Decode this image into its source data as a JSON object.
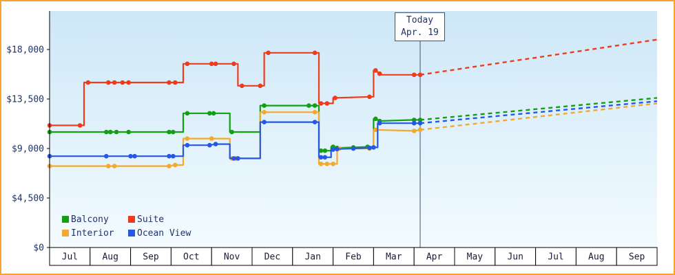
{
  "window": {
    "frame_border_color": "#f6a42c",
    "background_color": "#ffffff"
  },
  "chart_data": {
    "type": "line",
    "title": "",
    "grid": false,
    "legend_position": "bottom-left-inside",
    "y_axis": {
      "ylim": [
        0,
        21500
      ],
      "ticks": [
        {
          "value": 0,
          "label": "$0"
        },
        {
          "value": 4500,
          "label": "$4,500"
        },
        {
          "value": 9000,
          "label": "$9,000"
        },
        {
          "value": 13500,
          "label": "$13,500"
        },
        {
          "value": 18000,
          "label": "$18,000"
        }
      ]
    },
    "x_axis": {
      "months": [
        "Jul",
        "Aug",
        "Sep",
        "Oct",
        "Nov",
        "Dec",
        "Jan",
        "Feb",
        "Mar",
        "Apr",
        "May",
        "Jun",
        "Jul",
        "Aug",
        "Sep"
      ]
    },
    "today": {
      "line1": "Today",
      "line2": "Apr. 19",
      "month_position": 9.15
    },
    "colors": {
      "plot_top": "#cde7f7",
      "plot_bottom": "#f3fbff",
      "axis": "#000000",
      "tick_text": "#223366",
      "month_text": "#1a1a33",
      "today_line": "#44506a",
      "month_cell_fill": "#ffffff"
    },
    "legend": {
      "rows": [
        [
          "Balcony",
          "Suite"
        ],
        [
          "Interior",
          "Ocean View"
        ]
      ]
    },
    "series": [
      {
        "name": "Balcony",
        "color": "#12a012",
        "points": [
          [
            0,
            10500,
            1
          ],
          [
            1.4,
            10500,
            1
          ],
          [
            1.5,
            10500,
            1
          ],
          [
            1.65,
            10500,
            1
          ],
          [
            1.95,
            10500,
            1
          ],
          [
            2.95,
            10500,
            1
          ],
          [
            3.05,
            10500,
            1
          ],
          [
            3.3,
            10500,
            0
          ],
          [
            3.3,
            12200,
            0
          ],
          [
            3.4,
            12200,
            1
          ],
          [
            3.95,
            12200,
            1
          ],
          [
            4.05,
            12200,
            1
          ],
          [
            4.45,
            12200,
            0
          ],
          [
            4.45,
            10500,
            0
          ],
          [
            4.5,
            10500,
            1
          ],
          [
            5.2,
            10500,
            0
          ],
          [
            5.2,
            12900,
            0
          ],
          [
            5.3,
            12900,
            1
          ],
          [
            6.4,
            12900,
            1
          ],
          [
            6.55,
            12900,
            1
          ],
          [
            6.65,
            12900,
            0
          ],
          [
            6.65,
            8800,
            0
          ],
          [
            6.7,
            8800,
            1
          ],
          [
            6.8,
            8800,
            1
          ],
          [
            6.95,
            8800,
            0
          ],
          [
            6.95,
            9150,
            0
          ],
          [
            7.0,
            9150,
            1
          ],
          [
            7.1,
            9050,
            1
          ],
          [
            7.5,
            9100,
            1
          ],
          [
            7.85,
            9150,
            1
          ],
          [
            8.0,
            9150,
            0
          ],
          [
            8.0,
            11700,
            0
          ],
          [
            8.05,
            11700,
            1
          ],
          [
            8.15,
            11500,
            1
          ],
          [
            9.0,
            11600,
            1
          ],
          [
            9.15,
            11600,
            1
          ]
        ],
        "forecast": [
          [
            9.15,
            11600
          ],
          [
            15,
            13600
          ]
        ]
      },
      {
        "name": "Suite",
        "color": "#ee3b1c",
        "points": [
          [
            0,
            11100,
            1
          ],
          [
            0.75,
            11100,
            1
          ],
          [
            0.85,
            11100,
            0
          ],
          [
            0.85,
            15000,
            0
          ],
          [
            0.95,
            15000,
            1
          ],
          [
            1.45,
            15000,
            1
          ],
          [
            1.6,
            15000,
            1
          ],
          [
            1.8,
            15000,
            1
          ],
          [
            1.95,
            15000,
            1
          ],
          [
            2.95,
            15000,
            1
          ],
          [
            3.1,
            15000,
            1
          ],
          [
            3.3,
            15000,
            0
          ],
          [
            3.3,
            16700,
            0
          ],
          [
            3.4,
            16700,
            1
          ],
          [
            4.0,
            16700,
            1
          ],
          [
            4.1,
            16700,
            1
          ],
          [
            4.55,
            16700,
            1
          ],
          [
            4.65,
            16700,
            0
          ],
          [
            4.65,
            14700,
            0
          ],
          [
            4.75,
            14700,
            1
          ],
          [
            5.2,
            14700,
            1
          ],
          [
            5.3,
            14700,
            0
          ],
          [
            5.3,
            17700,
            0
          ],
          [
            5.4,
            17700,
            1
          ],
          [
            6.55,
            17700,
            1
          ],
          [
            6.65,
            17700,
            0
          ],
          [
            6.65,
            13100,
            0
          ],
          [
            6.7,
            13100,
            1
          ],
          [
            6.85,
            13100,
            1
          ],
          [
            7.0,
            13100,
            0
          ],
          [
            7.0,
            13600,
            0
          ],
          [
            7.05,
            13600,
            1
          ],
          [
            7.9,
            13700,
            1
          ],
          [
            8.0,
            13700,
            0
          ],
          [
            8.0,
            16100,
            0
          ],
          [
            8.05,
            16100,
            1
          ],
          [
            8.15,
            15800,
            1
          ],
          [
            8.2,
            15700,
            0
          ],
          [
            9.0,
            15700,
            1
          ],
          [
            9.15,
            15700,
            1
          ]
        ],
        "forecast": [
          [
            9.15,
            15700
          ],
          [
            15,
            18900
          ]
        ]
      },
      {
        "name": "Interior",
        "color": "#f2a92e",
        "points": [
          [
            0,
            7400,
            1
          ],
          [
            1.45,
            7400,
            1
          ],
          [
            1.6,
            7400,
            1
          ],
          [
            2.95,
            7400,
            1
          ],
          [
            3.1,
            7500,
            1
          ],
          [
            3.3,
            7500,
            0
          ],
          [
            3.3,
            9900,
            0
          ],
          [
            3.4,
            9900,
            1
          ],
          [
            4.0,
            9900,
            1
          ],
          [
            4.45,
            9900,
            0
          ],
          [
            4.45,
            8100,
            0
          ],
          [
            4.5,
            8100,
            1
          ],
          [
            4.6,
            8100,
            1
          ],
          [
            5.2,
            8100,
            0
          ],
          [
            5.2,
            12300,
            0
          ],
          [
            5.3,
            12300,
            1
          ],
          [
            6.55,
            12300,
            1
          ],
          [
            6.65,
            12300,
            0
          ],
          [
            6.65,
            7600,
            0
          ],
          [
            6.7,
            7600,
            1
          ],
          [
            6.85,
            7600,
            1
          ],
          [
            7.0,
            7600,
            1
          ],
          [
            7.1,
            7600,
            0
          ],
          [
            7.1,
            9000,
            0
          ],
          [
            7.15,
            9000,
            1
          ],
          [
            7.5,
            9000,
            1
          ],
          [
            7.9,
            9000,
            1
          ],
          [
            8.0,
            9000,
            0
          ],
          [
            8.0,
            10700,
            0
          ],
          [
            8.05,
            10700,
            1
          ],
          [
            9.0,
            10600,
            1
          ],
          [
            9.15,
            10700,
            1
          ]
        ],
        "forecast": [
          [
            9.15,
            10700
          ],
          [
            15,
            13100
          ]
        ]
      },
      {
        "name": "Ocean View",
        "color": "#2457e6",
        "points": [
          [
            0,
            8300,
            1
          ],
          [
            1.4,
            8300,
            1
          ],
          [
            2.0,
            8300,
            1
          ],
          [
            2.1,
            8300,
            1
          ],
          [
            2.95,
            8300,
            1
          ],
          [
            3.05,
            8300,
            1
          ],
          [
            3.3,
            8300,
            0
          ],
          [
            3.3,
            9300,
            0
          ],
          [
            3.4,
            9300,
            1
          ],
          [
            3.95,
            9300,
            1
          ],
          [
            4.1,
            9400,
            1
          ],
          [
            4.45,
            9400,
            0
          ],
          [
            4.45,
            8100,
            0
          ],
          [
            4.55,
            8100,
            1
          ],
          [
            4.65,
            8100,
            1
          ],
          [
            5.2,
            8100,
            0
          ],
          [
            5.2,
            11400,
            0
          ],
          [
            5.3,
            11400,
            1
          ],
          [
            6.55,
            11400,
            1
          ],
          [
            6.65,
            11400,
            0
          ],
          [
            6.65,
            8200,
            0
          ],
          [
            6.7,
            8200,
            1
          ],
          [
            6.8,
            8200,
            1
          ],
          [
            6.95,
            8200,
            0
          ],
          [
            6.95,
            8900,
            0
          ],
          [
            7.0,
            8900,
            1
          ],
          [
            7.1,
            8950,
            1
          ],
          [
            7.5,
            9000,
            1
          ],
          [
            7.9,
            9050,
            1
          ],
          [
            8.0,
            9100,
            1
          ],
          [
            8.1,
            9100,
            0
          ],
          [
            8.1,
            11300,
            0
          ],
          [
            8.15,
            11300,
            1
          ],
          [
            9.0,
            11300,
            1
          ],
          [
            9.15,
            11300,
            1
          ]
        ],
        "forecast": [
          [
            9.15,
            11300
          ],
          [
            15,
            13300
          ]
        ]
      }
    ]
  }
}
